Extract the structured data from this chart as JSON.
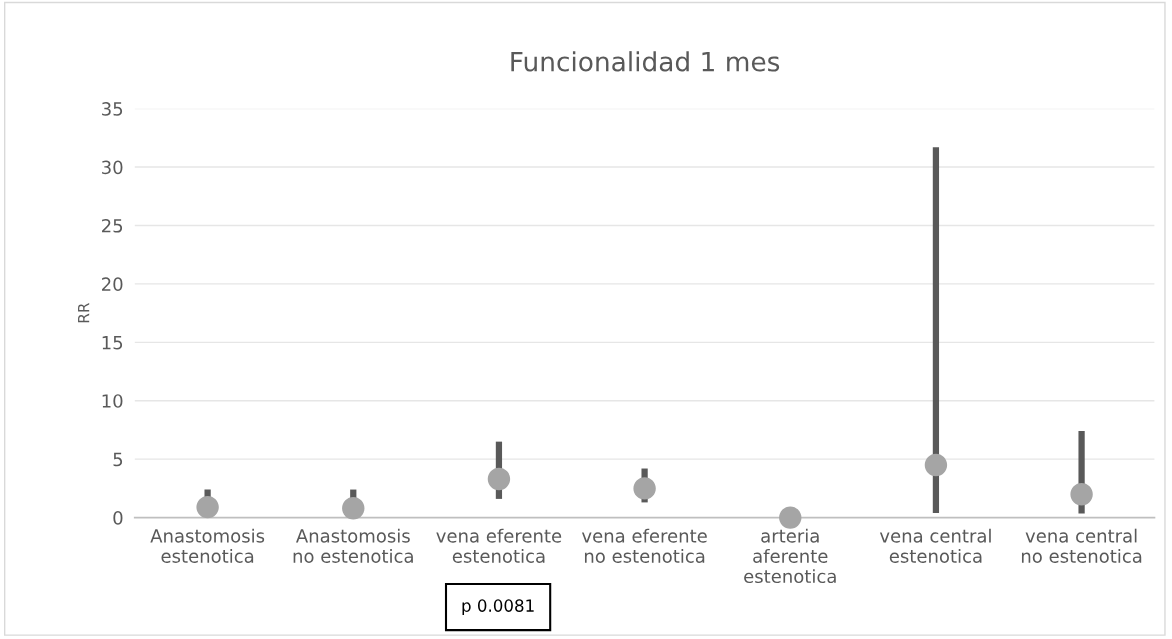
{
  "chart_data": {
    "type": "scatter",
    "title": "Funcionalidad 1 mes",
    "ylabel": "RR",
    "categories": [
      "Anastomosis\nestenotica",
      "Anastomosis\nno estenotica",
      "vena eferente\nestenotica",
      "vena eferente\nno estenotica",
      "arteria\naferente\nestenotica",
      "vena central\nestenotica",
      "vena central\nno estenotica"
    ],
    "series": [
      {
        "color": "#a5a5a5",
        "values": [
          0.9,
          0.8,
          3.3,
          2.5,
          0,
          4.5,
          2.0
        ],
        "errors": [
          [
            0.9,
            2.4
          ],
          [
            0.8,
            2.4
          ],
          [
            1.6,
            6.5
          ],
          [
            1.3,
            4.2
          ],
          null,
          [
            0.4,
            31.7
          ],
          [
            0.35,
            7.4
          ]
        ]
      }
    ],
    "ylim": [
      0,
      35
    ],
    "yticks": [
      0,
      5,
      10,
      15,
      20,
      25,
      30,
      35
    ],
    "grid": "y",
    "marker": "circle",
    "annotations": [
      "p 0.0081"
    ]
  }
}
